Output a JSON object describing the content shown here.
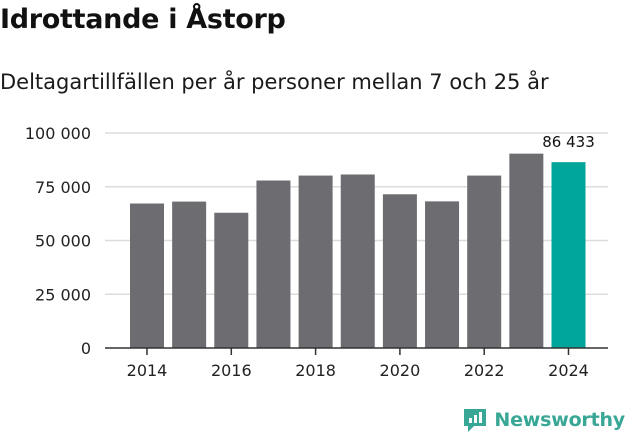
{
  "header": {
    "title": "Idrottande i Åstorp",
    "subtitle": "Deltagartillfällen per år personer mellan 7 och 25 år"
  },
  "chart_data": {
    "type": "bar",
    "title": "Idrottande i Åstorp",
    "subtitle": "Deltagartillfällen per år personer mellan 7 och 25 år",
    "categories": [
      "2014",
      "2015",
      "2016",
      "2017",
      "2018",
      "2019",
      "2020",
      "2021",
      "2022",
      "2023",
      "2024"
    ],
    "values": [
      67200,
      68100,
      62900,
      77900,
      80200,
      80700,
      71500,
      68200,
      80200,
      90400,
      86433
    ],
    "ylim": [
      0,
      100000
    ],
    "yticks": [
      0,
      25000,
      50000,
      75000,
      100000
    ],
    "ytick_labels": [
      "0",
      "25 000",
      "50 000",
      "75 000",
      "100 000"
    ],
    "xtick_labels": [
      "2014",
      "2016",
      "2018",
      "2020",
      "2022",
      "2024"
    ],
    "xlabel": "",
    "ylabel": "",
    "grid": true,
    "colors": {
      "default": "#6d6c71",
      "highlight": "#00a599"
    },
    "highlight_index": 10,
    "data_labels": [
      {
        "index": 10,
        "text": "86 433"
      }
    ]
  },
  "footer": {
    "brand_name": "Newsworthy",
    "brand_icon": "newsworthy-logo-icon",
    "brand_color": "#39a795"
  }
}
